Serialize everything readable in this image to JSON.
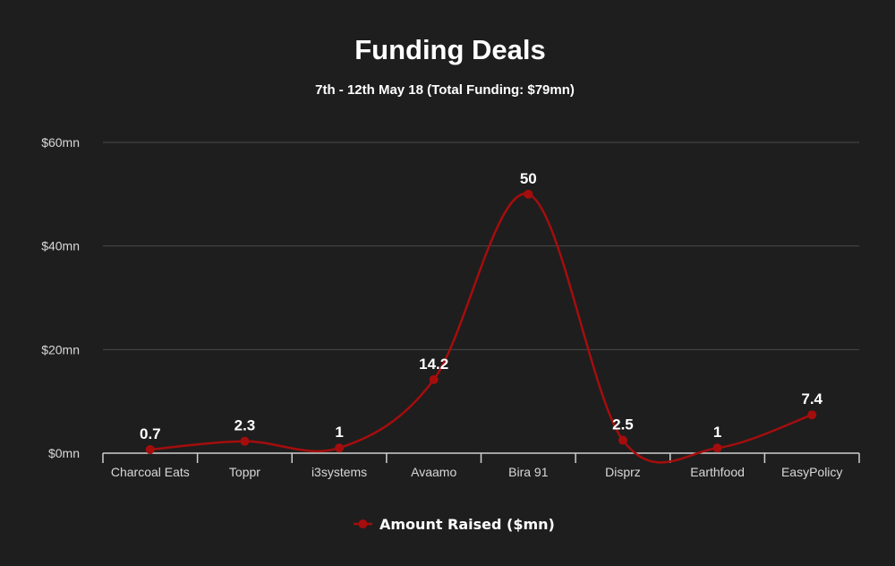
{
  "chart_data": {
    "type": "line",
    "title": "Funding Deals",
    "subtitle": "7th - 12th May 18 (Total Funding: $79mn)",
    "xlabel": "",
    "ylabel": "",
    "categories": [
      "Charcoal Eats",
      "Toppr",
      "i3systems",
      "Avaamo",
      "Bira 91",
      "Disprz",
      "Earthfood",
      "EasyPolicy"
    ],
    "series": [
      {
        "name": "Amount Raised ($mn)",
        "values": [
          0.7,
          2.3,
          1,
          14.2,
          50,
          2.5,
          1,
          7.4
        ],
        "color": "#a50d0d"
      }
    ],
    "data_labels": [
      "0.7",
      "2.3",
      "1",
      "14.2",
      "50",
      "2.5",
      "1",
      "7.4"
    ],
    "ylim": [
      0,
      60
    ],
    "yticks": [
      0,
      20,
      40,
      60
    ],
    "ytick_labels": [
      "$0mn",
      "$20mn",
      "$40mn",
      "$60mn"
    ],
    "grid": true,
    "smooth": true,
    "legend_position": "bottom-center"
  },
  "colors": {
    "background": "#1e1e1e",
    "line": "#a50d0d",
    "text": "#ffffff"
  }
}
